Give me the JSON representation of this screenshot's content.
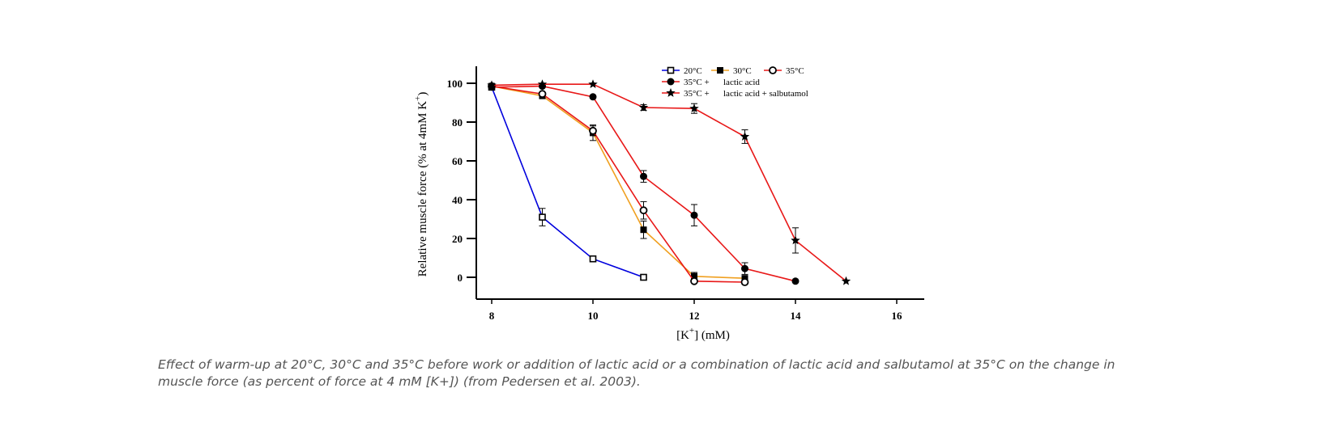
{
  "chart_data": {
    "type": "line",
    "xlabel_parts": [
      "[K",
      "+",
      "] (mM)"
    ],
    "ylabel_parts": [
      "Relative muscle force (% at 4mM K",
      "+",
      ")"
    ],
    "xlim": [
      7.8,
      16.6
    ],
    "ylim": [
      -11,
      108
    ],
    "xticks": [
      8,
      10,
      12,
      14,
      16
    ],
    "yticks": [
      0,
      20,
      40,
      60,
      80,
      100
    ],
    "grid": false,
    "legend_position": "top",
    "series": [
      {
        "name": "20°C",
        "color": "#0000dd",
        "marker": "square-open",
        "x": [
          8,
          9,
          10,
          11
        ],
        "y": [
          98,
          31,
          9.5,
          0
        ],
        "err": [
          0,
          4.5,
          0,
          0
        ]
      },
      {
        "name": "30°C",
        "color": "#f0a020",
        "marker": "square-filled",
        "x": [
          8,
          9,
          10,
          11,
          12,
          13
        ],
        "y": [
          98.5,
          93.5,
          74.5,
          24.5,
          0.5,
          -0.5
        ],
        "err": [
          0,
          0,
          4,
          4.5,
          2,
          0
        ]
      },
      {
        "name": "35°C",
        "color": "#e81818",
        "marker": "circle-open",
        "x": [
          8,
          9,
          10,
          11,
          12,
          13
        ],
        "y": [
          98.5,
          94.5,
          75.5,
          34.5,
          -2,
          -2.5
        ],
        "err": [
          0,
          0,
          2.5,
          4.5,
          0,
          0
        ]
      },
      {
        "name_parts": [
          "35°C +",
          "lactic acid"
        ],
        "color": "#e81818",
        "marker": "circle-filled",
        "x": [
          8,
          9,
          10,
          11,
          12,
          13,
          14
        ],
        "y": [
          98,
          98.5,
          93,
          52,
          32,
          4.5,
          -2
        ],
        "err": [
          0,
          0,
          0,
          3,
          5.5,
          3,
          0
        ]
      },
      {
        "name_parts": [
          "35°C +",
          "lactic acid + salbutamol"
        ],
        "color": "#e81818",
        "marker": "star",
        "x": [
          8,
          9,
          10,
          11,
          12,
          13,
          14,
          15
        ],
        "y": [
          99,
          99.5,
          99.5,
          87.5,
          87,
          72.5,
          19,
          -2
        ],
        "err": [
          0,
          0,
          0,
          1.5,
          2.5,
          3.5,
          6.5,
          0
        ]
      }
    ]
  },
  "caption": "Effect of warm-up at 20°C, 30°C and 35°C before work or addition of lactic acid or a combination of lactic acid and salbutamol at 35°C on the change in muscle force (as percent of force at 4 mM [K+]) (from Pedersen et al. 2003)."
}
